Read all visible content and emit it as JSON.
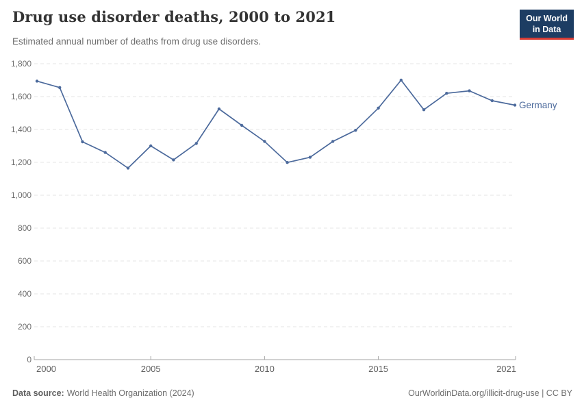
{
  "header": {
    "title": "Drug use disorder deaths, 2000 to 2021",
    "subtitle": "Estimated annual number of deaths from drug use disorders.",
    "logo": {
      "line1": "Our World",
      "line2": "in Data"
    }
  },
  "chart_data": {
    "type": "line",
    "title": "Drug use disorder deaths, 2000 to 2021",
    "xlabel": "",
    "ylabel": "",
    "x": [
      2000,
      2001,
      2002,
      2003,
      2004,
      2005,
      2006,
      2007,
      2008,
      2009,
      2010,
      2011,
      2012,
      2013,
      2014,
      2015,
      2016,
      2017,
      2018,
      2019,
      2020,
      2021
    ],
    "series": [
      {
        "name": "Germany",
        "color": "#4c6a9c",
        "values": [
          1694,
          1655,
          1325,
          1260,
          1165,
          1300,
          1215,
          1315,
          1525,
          1425,
          1327,
          1199,
          1231,
          1327,
          1395,
          1530,
          1700,
          1520,
          1620,
          1635,
          1575,
          1548
        ]
      }
    ],
    "ylim": [
      0,
      1800
    ],
    "yticks": [
      0,
      200,
      400,
      600,
      800,
      1000,
      1200,
      1400,
      1600,
      1800
    ],
    "xticks": [
      2000,
      2005,
      2010,
      2015,
      2021
    ],
    "grid": "horizontal dashed",
    "legend_position": "end-of-line label"
  },
  "footer": {
    "source_label": "Data source:",
    "source_value": "World Health Organization (2024)",
    "link": "OurWorldinData.org/illicit-drug-use | CC BY"
  },
  "colors": {
    "line": "#4c6a9c",
    "logo_bg": "#1d3d63",
    "logo_accent": "#d73c34",
    "grid": "#e4e4e4",
    "axis": "#a5a5a5",
    "title": "#333333",
    "muted_text": "#6e6e6e"
  }
}
